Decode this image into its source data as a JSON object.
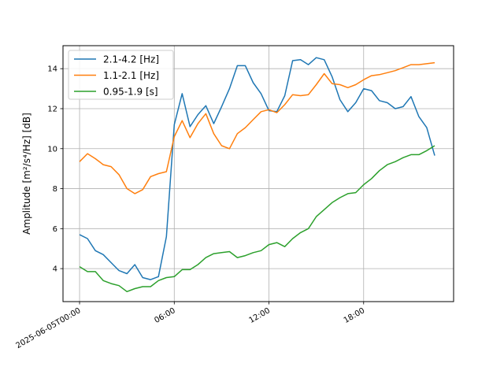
{
  "chart_data": {
    "type": "line",
    "title": "",
    "xlabel": "",
    "ylabel": "Amplitude [m²/s⁴/Hz] [dB]",
    "x_unit": "hours",
    "xlim": [
      -1.05,
      23.7
    ],
    "ylim": [
      2.35,
      15.15
    ],
    "grid": true,
    "legend_position": "upper-left",
    "x_ticks": [
      {
        "value": 0,
        "label": "2025-06-05T00:00"
      },
      {
        "value": 6,
        "label": "06:00"
      },
      {
        "value": 12,
        "label": "12:00"
      },
      {
        "value": 18,
        "label": "18:00"
      }
    ],
    "y_ticks": [
      {
        "value": 4,
        "label": "4"
      },
      {
        "value": 6,
        "label": "6"
      },
      {
        "value": 8,
        "label": "8"
      },
      {
        "value": 10,
        "label": "10"
      },
      {
        "value": 12,
        "label": "12"
      },
      {
        "value": 14,
        "label": "14"
      }
    ],
    "x": [
      0,
      0.5,
      1,
      1.5,
      2,
      2.5,
      3,
      3.5,
      4,
      4.5,
      5,
      5.5,
      6,
      6.5,
      7,
      7.5,
      8,
      8.5,
      9,
      9.5,
      10,
      10.5,
      11,
      11.5,
      12,
      12.5,
      13,
      13.5,
      14,
      14.5,
      15,
      15.5,
      16,
      16.5,
      17,
      17.5,
      18,
      18.5,
      19,
      19.5,
      20,
      20.5,
      21,
      21.5,
      22,
      22.5
    ],
    "series": [
      {
        "name": "2.1-4.2 [Hz]",
        "color": "#1f77b4",
        "values": [
          5.7,
          5.5,
          4.9,
          4.7,
          4.3,
          3.9,
          3.75,
          4.2,
          3.55,
          3.45,
          3.6,
          5.6,
          11.2,
          12.75,
          11.1,
          11.7,
          12.15,
          11.25,
          12.1,
          13.0,
          14.15,
          14.15,
          13.3,
          12.75,
          11.9,
          11.85,
          12.65,
          14.4,
          14.45,
          14.2,
          14.55,
          14.45,
          13.6,
          12.45,
          11.85,
          12.3,
          13.0,
          12.9,
          12.4,
          12.3,
          12.0,
          12.1,
          12.6,
          11.6,
          11.05,
          9.65
        ]
      },
      {
        "name": "1.1-2.1 [Hz]",
        "color": "#ff7f0e",
        "values": [
          9.35,
          9.75,
          9.5,
          9.2,
          9.1,
          8.7,
          8.0,
          7.75,
          7.95,
          8.6,
          8.75,
          8.85,
          10.6,
          11.4,
          10.55,
          11.25,
          11.75,
          10.75,
          10.15,
          10.0,
          10.75,
          11.05,
          11.45,
          11.85,
          11.95,
          11.8,
          12.2,
          12.7,
          12.65,
          12.7,
          13.2,
          13.75,
          13.25,
          13.2,
          13.05,
          13.2,
          13.45,
          13.65,
          13.7,
          13.8,
          13.9,
          14.05,
          14.2,
          14.2,
          14.25,
          14.3
        ]
      },
      {
        "name": "0.95-1.9 [s]",
        "color": "#2ca02c",
        "values": [
          4.1,
          3.85,
          3.85,
          3.4,
          3.25,
          3.15,
          2.85,
          3.0,
          3.1,
          3.1,
          3.4,
          3.55,
          3.6,
          3.95,
          3.95,
          4.2,
          4.55,
          4.75,
          4.8,
          4.85,
          4.55,
          4.65,
          4.8,
          4.9,
          5.2,
          5.3,
          5.1,
          5.5,
          5.8,
          6.0,
          6.6,
          6.95,
          7.3,
          7.55,
          7.75,
          7.8,
          8.2,
          8.5,
          8.9,
          9.2,
          9.35,
          9.55,
          9.7,
          9.7,
          9.9,
          10.15
        ]
      }
    ]
  }
}
